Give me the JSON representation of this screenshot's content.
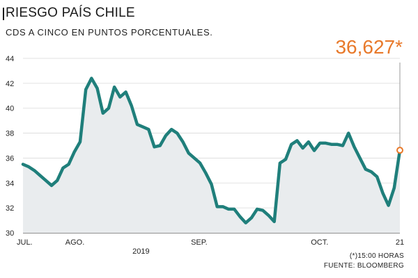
{
  "header": {
    "title": "RIESGO PAÍS CHILE",
    "subtitle": "CDS A CINCO EN PUNTOS PORCENTUALES.",
    "current_value": "36,627*"
  },
  "footnotes": {
    "note": "(*)15:00 HORAS",
    "source": "FUENTE: BLOOMBERG"
  },
  "colors": {
    "line": "#1f7f7b",
    "fill": "#e9ecee",
    "highlight": "#e8792a",
    "grid": "#d9d9d9"
  },
  "chart_data": {
    "type": "area",
    "title": "RIESGO PAÍS CHILE",
    "subtitle": "CDS A CINCO EN PUNTOS PORCENTUALES.",
    "ylim": [
      30,
      44
    ],
    "yticks": [
      30,
      32,
      34,
      36,
      38,
      40,
      42,
      44
    ],
    "grid": true,
    "x_tick_labels": [
      {
        "label": "JUL.",
        "index": 0
      },
      {
        "label": "AGO.",
        "index": 9
      },
      {
        "label": "SEP.",
        "index": 31
      },
      {
        "label": "OCT.",
        "index": 52
      },
      {
        "label": "21",
        "index": 66
      }
    ],
    "year_label": "2019",
    "year_label_index": 21,
    "series": [
      {
        "values": [
          35.5,
          35.3,
          35.0,
          34.6,
          34.2,
          33.8,
          34.2,
          35.2,
          35.5,
          36.5,
          37.3,
          41.5,
          42.4,
          41.6,
          39.6,
          40.0,
          41.7,
          40.9,
          41.3,
          40.2,
          38.7,
          38.5,
          38.3,
          36.9,
          37.0,
          37.8,
          38.3,
          38.0,
          37.3,
          36.4,
          36.0,
          35.6,
          34.8,
          33.9,
          32.1,
          32.1,
          31.9,
          31.9,
          31.3,
          30.8,
          31.2,
          31.9,
          31.8,
          31.4,
          30.9,
          35.6,
          35.9,
          37.1,
          37.4,
          36.8,
          37.3,
          36.6,
          37.2,
          37.2,
          37.1,
          37.1,
          37.0,
          38.0,
          36.9,
          36.0,
          35.1,
          34.9,
          34.5,
          33.2,
          32.2,
          33.6,
          36.627
        ]
      }
    ],
    "last_point_value": 36.627
  }
}
